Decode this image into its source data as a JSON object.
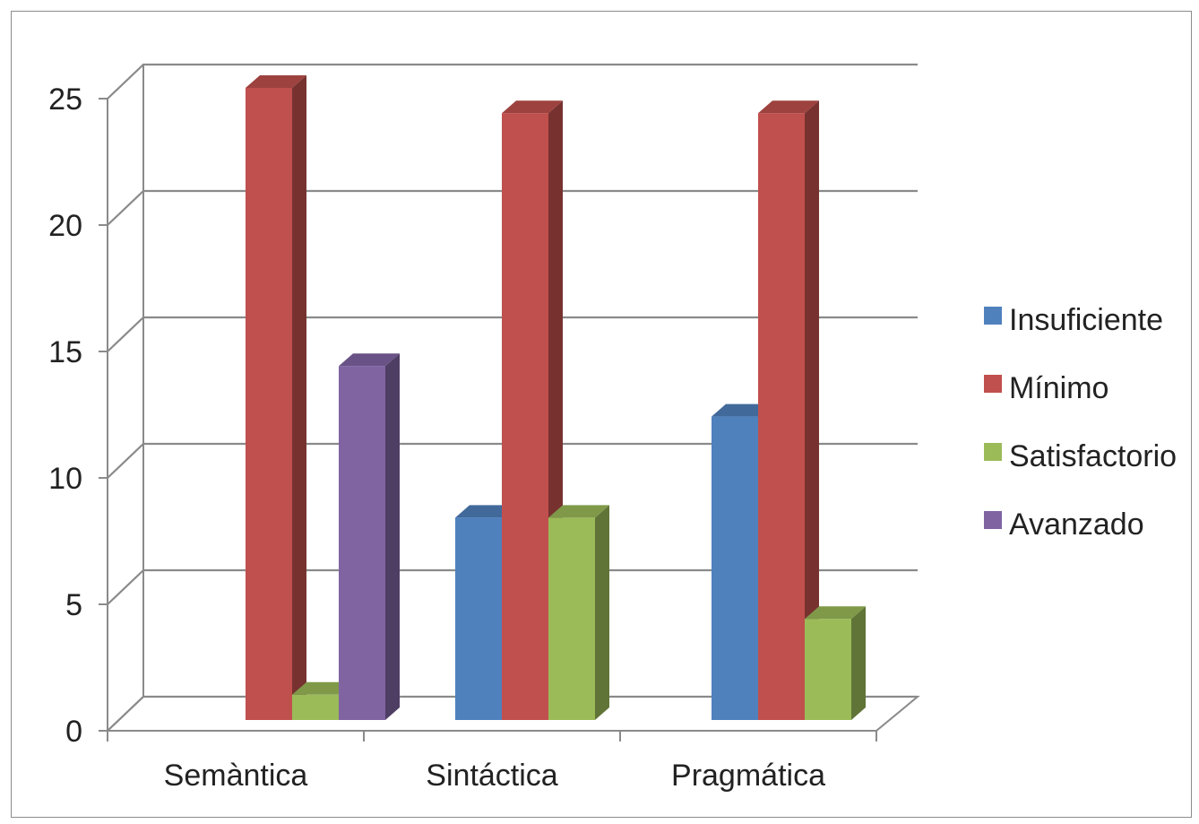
{
  "chart_data": {
    "type": "bar",
    "categories": [
      "Semàntica",
      "Sintáctica",
      "Pragmática"
    ],
    "series": [
      {
        "name": "Insuficiente",
        "values": [
          0,
          8,
          12
        ],
        "color": "#4F81BD"
      },
      {
        "name": "Mínimo",
        "values": [
          25,
          24,
          24
        ],
        "color": "#C0504D"
      },
      {
        "name": "Satisfactorio",
        "values": [
          1,
          8,
          4
        ],
        "color": "#9BBB59"
      },
      {
        "name": "Avanzado",
        "values": [
          14,
          0,
          0
        ],
        "color": "#8064A2"
      }
    ],
    "ylim": [
      0,
      25
    ],
    "yticks": [
      0,
      5,
      10,
      15,
      20,
      25
    ],
    "grid": true,
    "style": "3d-clustered-column",
    "legend_position": "right"
  }
}
